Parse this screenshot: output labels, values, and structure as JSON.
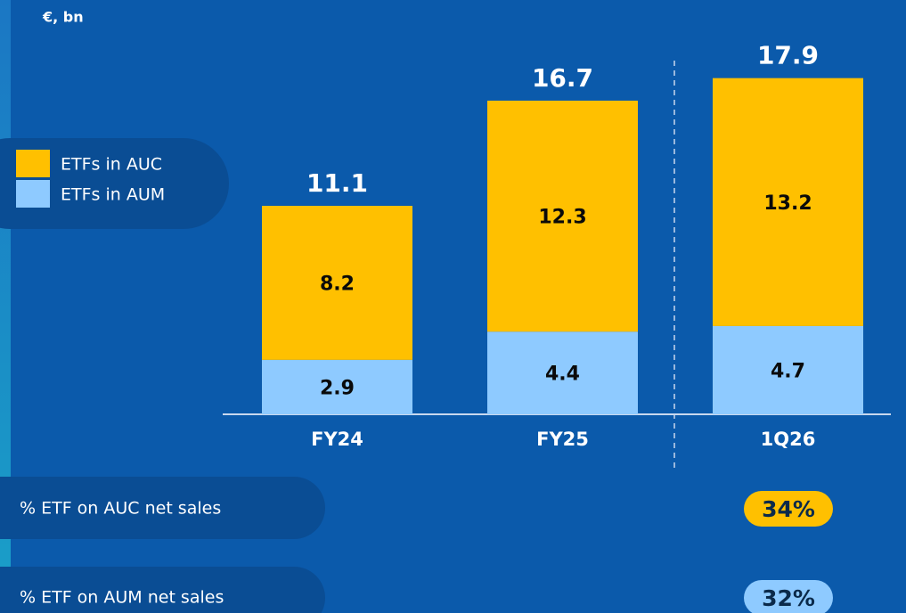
{
  "unit_label": "€, bn",
  "chart_data": {
    "type": "stacked_bar",
    "categories": [
      "FY24",
      "FY25",
      "1Q26"
    ],
    "series": [
      {
        "name": "ETFs in AUM",
        "color": "#8ecaff",
        "values": [
          2.9,
          4.4,
          4.7
        ]
      },
      {
        "name": "ETFs in AUC",
        "color": "#ffc000",
        "values": [
          8.2,
          12.3,
          13.2
        ]
      }
    ],
    "totals": [
      11.1,
      16.7,
      17.9
    ]
  },
  "metrics": [
    {
      "label": "% ETF on AUC net sales",
      "value": "34%",
      "color": "#ffc000"
    },
    {
      "label": "% ETF on AUM net sales",
      "value": "32%",
      "color": "#8ecaff"
    }
  ]
}
